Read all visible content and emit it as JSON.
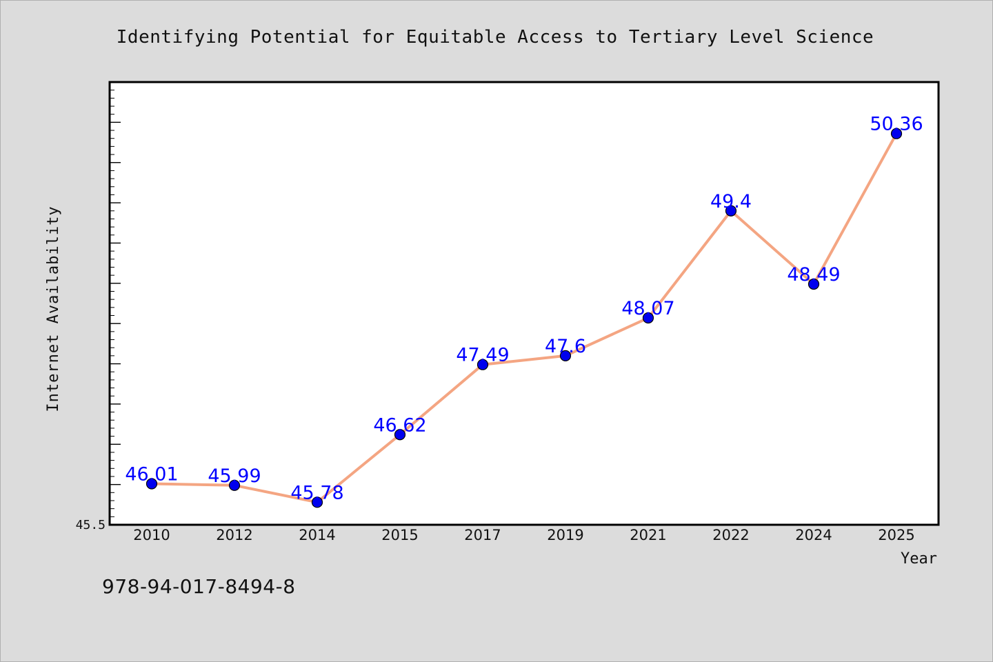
{
  "chart_data": {
    "type": "line",
    "title": "Identifying Potential for Equitable Access to Tertiary Level Science",
    "xlabel": "Year",
    "ylabel": "Internet Availability",
    "categories": [
      "2010",
      "2012",
      "2014",
      "2015",
      "2017",
      "2019",
      "2021",
      "2022",
      "2024",
      "2025"
    ],
    "series": [
      {
        "values": [
          46.01,
          45.99,
          45.78,
          46.62,
          47.49,
          47.6,
          48.07,
          49.4,
          48.49,
          50.36
        ],
        "labels": [
          "46.01",
          "45.99",
          "45.78",
          "46.62",
          "47.49",
          "47.6",
          "48.07",
          "49.4",
          "48.49",
          "50.36"
        ]
      }
    ],
    "ylim": [
      45.5,
      51.0
    ],
    "y_tick_labels": [
      {
        "value": 45.5,
        "label": "45.5"
      }
    ],
    "grid": false,
    "colors": {
      "line": "#f4a582",
      "marker": "#0000ee",
      "label": "#0000ff"
    }
  },
  "footer": {
    "isbn": "978-94-017-8494-8"
  }
}
